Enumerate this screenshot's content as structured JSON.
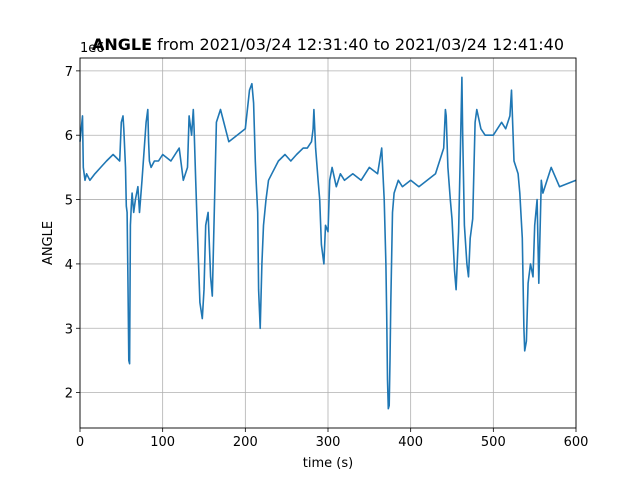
{
  "chart_data": {
    "type": "line",
    "title_bold": "ANGLE",
    "title_rest": " from 2021/03/24 12:31:40 to 2021/03/24 12:41:40",
    "xlabel": "time (s)",
    "ylabel": "ANGLE",
    "y_offset_text": "1e6",
    "xlim": [
      0,
      600
    ],
    "ylim": [
      1.45,
      7.2
    ],
    "x_ticks": [
      0,
      100,
      200,
      300,
      400,
      500,
      600
    ],
    "y_ticks": [
      2,
      3,
      4,
      5,
      6,
      7
    ],
    "grid": true,
    "line_color": "#1f77b4",
    "series": [
      {
        "x": [
          0,
          3,
          4,
          6,
          8,
          12,
          18,
          25,
          32,
          40,
          48,
          50,
          52,
          53,
          55,
          56,
          57,
          58,
          59,
          60,
          61,
          62,
          63,
          65,
          67,
          70,
          72,
          75,
          80,
          82,
          83,
          84,
          86,
          90,
          95,
          100,
          110,
          120,
          125,
          130,
          132,
          135,
          137,
          138,
          140,
          142,
          145,
          148,
          150,
          152,
          155,
          158,
          160,
          165,
          170,
          180,
          190,
          200,
          205,
          208,
          210,
          212,
          213,
          215,
          216,
          218,
          220,
          222,
          225,
          228,
          232,
          240,
          248,
          255,
          262,
          270,
          275,
          280,
          282,
          283,
          285,
          288,
          290,
          292,
          295,
          297,
          300,
          302,
          305,
          310,
          315,
          320,
          330,
          340,
          350,
          360,
          365,
          368,
          370,
          371,
          372,
          373,
          374,
          375,
          376,
          378,
          380,
          385,
          390,
          400,
          410,
          420,
          430,
          440,
          442,
          443,
          445,
          448,
          450,
          453,
          455,
          458,
          460,
          462,
          463,
          465,
          468,
          470,
          472,
          475,
          478,
          480,
          485,
          490,
          500,
          510,
          515,
          520,
          522,
          525,
          530,
          532,
          535,
          537,
          538,
          540,
          542,
          545,
          548,
          550,
          553,
          555,
          558,
          560,
          570,
          580,
          590,
          600
        ],
        "y": [
          5.9,
          6.3,
          5.5,
          5.3,
          5.4,
          5.3,
          5.4,
          5.5,
          5.6,
          5.7,
          5.6,
          6.2,
          6.3,
          6.1,
          5.5,
          4.9,
          4.8,
          3.8,
          2.5,
          2.45,
          4.6,
          4.9,
          5.1,
          4.8,
          5.0,
          5.2,
          4.8,
          5.3,
          6.2,
          6.4,
          5.9,
          5.6,
          5.5,
          5.6,
          5.6,
          5.7,
          5.6,
          5.8,
          5.3,
          5.5,
          6.3,
          6.0,
          6.4,
          6.1,
          5.3,
          4.5,
          3.4,
          3.15,
          3.6,
          4.6,
          4.8,
          3.8,
          3.5,
          6.2,
          6.4,
          5.9,
          6.0,
          6.1,
          6.7,
          6.8,
          6.5,
          5.6,
          5.3,
          4.8,
          3.6,
          3.0,
          4.0,
          4.6,
          5.0,
          5.3,
          5.4,
          5.6,
          5.7,
          5.6,
          5.7,
          5.8,
          5.8,
          5.9,
          6.1,
          6.4,
          5.8,
          5.3,
          5.0,
          4.3,
          4.0,
          4.6,
          4.5,
          5.3,
          5.5,
          5.2,
          5.4,
          5.3,
          5.4,
          5.3,
          5.5,
          5.4,
          5.8,
          5.0,
          4.0,
          3.2,
          2.2,
          1.75,
          1.8,
          2.5,
          3.4,
          4.8,
          5.1,
          5.3,
          5.2,
          5.3,
          5.2,
          5.3,
          5.4,
          5.8,
          6.4,
          6.3,
          5.5,
          5.0,
          4.7,
          3.9,
          3.6,
          4.5,
          5.7,
          6.9,
          6.0,
          4.6,
          4.0,
          3.8,
          4.4,
          4.7,
          6.2,
          6.4,
          6.1,
          6.0,
          6.0,
          6.2,
          6.1,
          6.3,
          6.7,
          5.6,
          5.4,
          5.1,
          4.4,
          3.0,
          2.65,
          2.8,
          3.7,
          4.0,
          3.8,
          4.6,
          5.0,
          3.7,
          5.3,
          5.1,
          5.5,
          5.2,
          5.25,
          5.3
        ]
      }
    ]
  }
}
